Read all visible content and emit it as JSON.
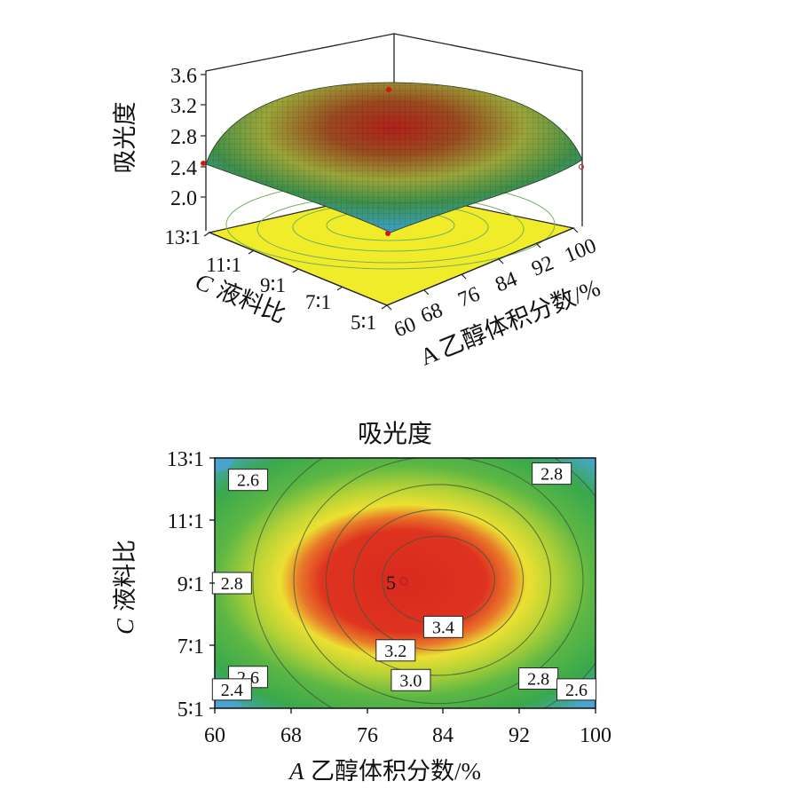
{
  "chart_data": [
    {
      "type": "surface",
      "zlabel": "吸光度",
      "z_ticks": [
        "3.6",
        "3.2",
        "2.8",
        "2.4",
        "2.0"
      ],
      "x_ticks": [
        "60",
        "68",
        "76",
        "84",
        "92",
        "100"
      ],
      "y_ticks": [
        "13∶1",
        "11∶1",
        "9∶1",
        "7∶1",
        "5∶1"
      ],
      "xlabel_var": "A",
      "xlabel_text": "乙醇体积分数/%",
      "ylabel_var": "C",
      "ylabel_text": "液料比",
      "zlim": [
        2.0,
        3.6
      ],
      "floor_color": "#f0ec2a",
      "colormap": [
        "#4aa8e0",
        "#3aa84a",
        "#e8e430",
        "#d22a1e"
      ]
    },
    {
      "type": "contour",
      "title": "吸光度",
      "x_ticks": [
        "60",
        "68",
        "76",
        "84",
        "92",
        "100"
      ],
      "y_ticks": [
        "13∶1",
        "11∶1",
        "9∶1",
        "7∶1",
        "5∶1"
      ],
      "xlabel_var": "A",
      "xlabel_text": "乙醇体积分数/%",
      "ylabel_var": "C",
      "ylabel_text": "液料比",
      "xlim": [
        60,
        100
      ],
      "ylim": [
        5,
        13
      ],
      "center_label": "5",
      "contour_labels": [
        {
          "text": "2.6",
          "x": 63.5,
          "y": 12.3
        },
        {
          "text": "2.8",
          "x": 95.4,
          "y": 12.5
        },
        {
          "text": "2.8",
          "x": 61.8,
          "y": 9.0
        },
        {
          "text": "3.4",
          "x": 84.0,
          "y": 7.6
        },
        {
          "text": "3.2",
          "x": 79.0,
          "y": 6.85
        },
        {
          "text": "2.6",
          "x": 63.5,
          "y": 6.0
        },
        {
          "text": "3.0",
          "x": 80.6,
          "y": 5.9
        },
        {
          "text": "2.8",
          "x": 94.0,
          "y": 5.95
        },
        {
          "text": "2.4",
          "x": 61.8,
          "y": 5.6
        },
        {
          "text": "2.6",
          "x": 98.0,
          "y": 5.6
        }
      ],
      "colormap": [
        "#4aa8e0",
        "#3aa84a",
        "#e8e430",
        "#d22a1e"
      ]
    }
  ]
}
